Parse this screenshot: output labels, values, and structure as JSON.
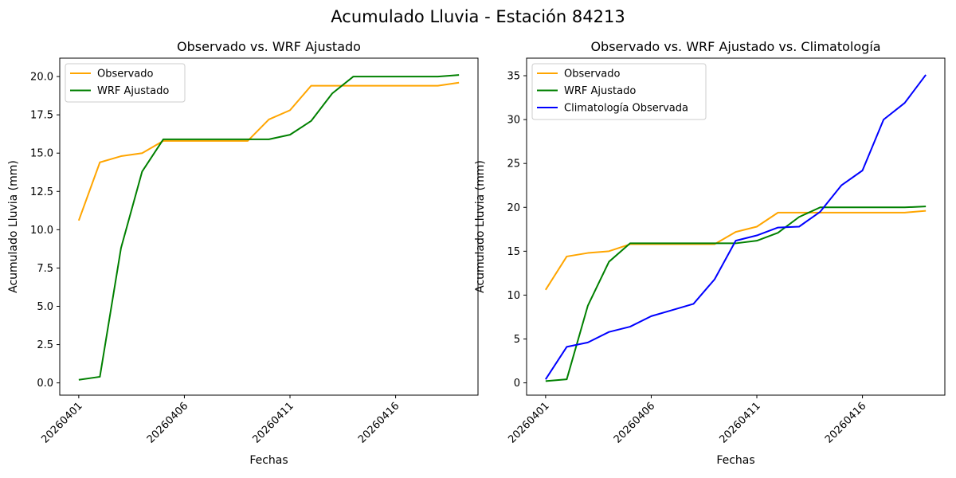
{
  "figure_title": "Acumulado Lluvia - Estación 84213",
  "chart_data": [
    {
      "type": "line",
      "title": "Observado vs. WRF Ajustado",
      "xlabel": "Fechas",
      "ylabel": "Acumulado Lluvia (mm)",
      "x": [
        1,
        2,
        3,
        4,
        5,
        6,
        7,
        8,
        9,
        10,
        11,
        12,
        13,
        14,
        15,
        16,
        17,
        18,
        19
      ],
      "xlim": [
        0.1,
        19.9
      ],
      "xticks": [
        {
          "value": 1,
          "label": "20260401"
        },
        {
          "value": 6,
          "label": "20260406"
        },
        {
          "value": 11,
          "label": "20260411"
        },
        {
          "value": 16,
          "label": "20260416"
        }
      ],
      "ylim": [
        -0.8,
        21.2
      ],
      "yticks": [
        {
          "value": 0,
          "label": "0.0"
        },
        {
          "value": 2.5,
          "label": "2.5"
        },
        {
          "value": 5,
          "label": "5.0"
        },
        {
          "value": 7.5,
          "label": "7.5"
        },
        {
          "value": 10,
          "label": "10.0"
        },
        {
          "value": 12.5,
          "label": "12.5"
        },
        {
          "value": 15,
          "label": "15.0"
        },
        {
          "value": 17.5,
          "label": "17.5"
        },
        {
          "value": 20,
          "label": "20.0"
        }
      ],
      "grid": false,
      "legend_position": "upper-left",
      "series": [
        {
          "name": "Observado",
          "color": "#ffa500",
          "values": [
            10.6,
            14.4,
            14.8,
            15.0,
            15.8,
            15.8,
            15.8,
            15.8,
            15.8,
            17.2,
            17.8,
            19.4,
            19.4,
            19.4,
            19.4,
            19.4,
            19.4,
            19.4,
            19.6
          ]
        },
        {
          "name": "WRF Ajustado",
          "color": "#008000",
          "values": [
            0.2,
            0.4,
            8.8,
            13.8,
            15.9,
            15.9,
            15.9,
            15.9,
            15.9,
            15.9,
            16.2,
            17.1,
            18.9,
            20.0,
            20.0,
            20.0,
            20.0,
            20.0,
            20.1
          ]
        }
      ]
    },
    {
      "type": "line",
      "title": "Observado vs. WRF Ajustado vs. Climatología",
      "xlabel": "Fechas",
      "ylabel": "Acumulado Lluvia (mm)",
      "x": [
        1,
        2,
        3,
        4,
        5,
        6,
        7,
        8,
        9,
        10,
        11,
        12,
        13,
        14,
        15,
        16,
        17,
        18,
        19
      ],
      "xlim": [
        0.1,
        19.9
      ],
      "xticks": [
        {
          "value": 1,
          "label": "20260401"
        },
        {
          "value": 6,
          "label": "20260406"
        },
        {
          "value": 11,
          "label": "20260411"
        },
        {
          "value": 16,
          "label": "20260416"
        }
      ],
      "ylim": [
        -1.4,
        37.0
      ],
      "yticks": [
        {
          "value": 0,
          "label": "0"
        },
        {
          "value": 5,
          "label": "5"
        },
        {
          "value": 10,
          "label": "10"
        },
        {
          "value": 15,
          "label": "15"
        },
        {
          "value": 20,
          "label": "20"
        },
        {
          "value": 25,
          "label": "25"
        },
        {
          "value": 30,
          "label": "30"
        },
        {
          "value": 35,
          "label": "35"
        }
      ],
      "grid": false,
      "legend_position": "upper-left",
      "series": [
        {
          "name": "Observado",
          "color": "#ffa500",
          "values": [
            10.6,
            14.4,
            14.8,
            15.0,
            15.8,
            15.8,
            15.8,
            15.8,
            15.8,
            17.2,
            17.8,
            19.4,
            19.4,
            19.4,
            19.4,
            19.4,
            19.4,
            19.4,
            19.6
          ]
        },
        {
          "name": "WRF Ajustado",
          "color": "#008000",
          "values": [
            0.2,
            0.4,
            8.8,
            13.8,
            15.9,
            15.9,
            15.9,
            15.9,
            15.9,
            15.9,
            16.2,
            17.1,
            18.9,
            20.0,
            20.0,
            20.0,
            20.0,
            20.0,
            20.1
          ]
        },
        {
          "name": "Climatología Observada",
          "color": "#0000ff",
          "values": [
            0.4,
            4.1,
            4.6,
            5.8,
            6.4,
            7.6,
            8.3,
            9.0,
            11.8,
            16.2,
            16.8,
            17.7,
            17.8,
            19.5,
            22.5,
            24.2,
            30.0,
            31.9,
            35.1
          ]
        }
      ]
    }
  ]
}
